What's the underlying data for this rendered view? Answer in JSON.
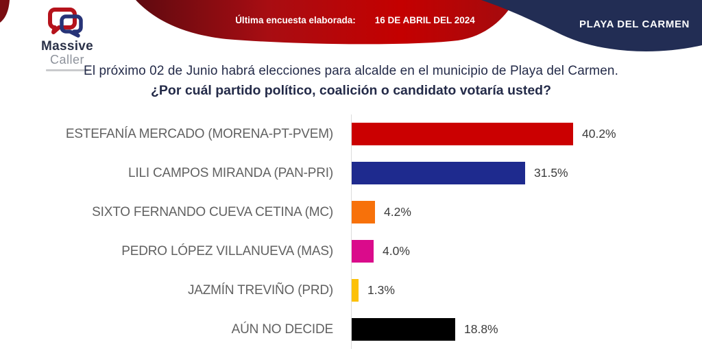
{
  "header": {
    "logo": {
      "line1": "Massive",
      "line2": "Caller"
    },
    "ribbon": {
      "label": "Última encuesta elaborada:",
      "date": "16 DE ABRIL DEL 2024"
    },
    "location_badge": "PLAYA DEL CARMEN",
    "colors": {
      "ribbon_red_dark": "#6e0b12",
      "ribbon_red_bright": "#c40000",
      "ribbon_navy": "#222d54"
    }
  },
  "title": {
    "line1": "El próximo 02 de Junio habrá elecciones para alcalde en el municipio de  Playa del Carmen.",
    "line2": "¿Por cuál partido político, coalición o candidato votaría usted?"
  },
  "chart_data": {
    "type": "bar",
    "orientation": "horizontal",
    "title": "",
    "xlabel": "",
    "ylabel": "",
    "xlim": [
      0,
      45
    ],
    "grid": false,
    "legend": "none",
    "categories": [
      "ESTEFANÍA MERCADO (MORENA-PT-PVEM)",
      "LILI CAMPOS MIRANDA (PAN-PRI)",
      "SIXTO FERNANDO CUEVA CETINA (MC)",
      "PEDRO LÓPEZ VILLANUEVA (MAS)",
      "JAZMÍN TREVIÑO (PRD)",
      "AÚN NO DECIDE"
    ],
    "values": [
      40.2,
      31.5,
      4.2,
      4.0,
      1.3,
      18.8
    ],
    "value_labels": [
      "40.2%",
      "31.5%",
      "4.2%",
      "4.0%",
      "1.3%",
      "18.8%"
    ],
    "colors": [
      "#cb0001",
      "#1e2a8e",
      "#f7710a",
      "#da0b8b",
      "#fcc108",
      "#000000"
    ]
  }
}
